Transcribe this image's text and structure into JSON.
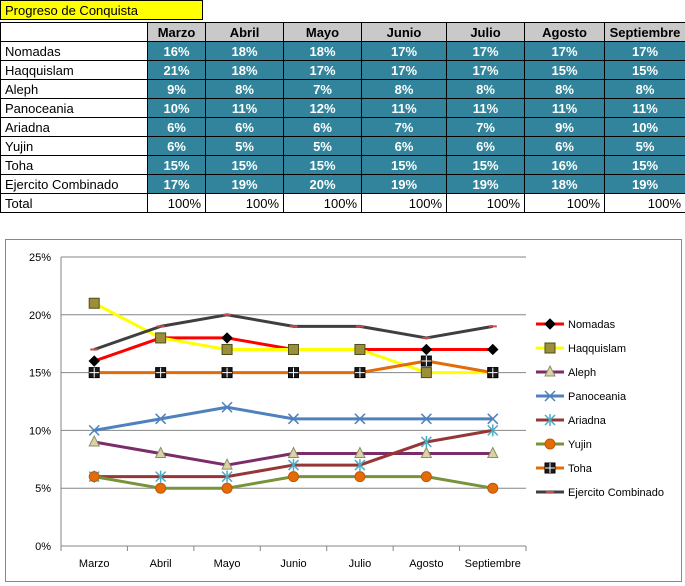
{
  "table": {
    "title": "Progreso de Conquista",
    "months": [
      "Marzo",
      "Abril",
      "Mayo",
      "Junio",
      "Julio",
      "Agosto",
      "Septiembre"
    ],
    "rows": [
      {
        "name": "Nomadas",
        "values": [
          "16%",
          "18%",
          "18%",
          "17%",
          "17%",
          "17%",
          "17%"
        ]
      },
      {
        "name": "Haqquislam",
        "values": [
          "21%",
          "18%",
          "17%",
          "17%",
          "17%",
          "15%",
          "15%"
        ]
      },
      {
        "name": "Aleph",
        "values": [
          "9%",
          "8%",
          "7%",
          "8%",
          "8%",
          "8%",
          "8%"
        ]
      },
      {
        "name": "Panoceania",
        "values": [
          "10%",
          "11%",
          "12%",
          "11%",
          "11%",
          "11%",
          "11%"
        ]
      },
      {
        "name": "Ariadna",
        "values": [
          "6%",
          "6%",
          "6%",
          "7%",
          "7%",
          "9%",
          "10%"
        ]
      },
      {
        "name": "Yujin",
        "values": [
          "6%",
          "5%",
          "5%",
          "6%",
          "6%",
          "6%",
          "5%"
        ]
      },
      {
        "name": "Toha",
        "values": [
          "15%",
          "15%",
          "15%",
          "15%",
          "15%",
          "16%",
          "15%"
        ]
      },
      {
        "name": "Ejercito Combinado",
        "values": [
          "17%",
          "19%",
          "20%",
          "19%",
          "19%",
          "18%",
          "19%"
        ]
      }
    ],
    "total_label": "Total",
    "totals": [
      "100%",
      "100%",
      "100%",
      "100%",
      "100%",
      "100%",
      "100%"
    ]
  },
  "chart_data": {
    "type": "line",
    "title": "",
    "xlabel": "",
    "ylabel": "",
    "categories": [
      "Marzo",
      "Abril",
      "Mayo",
      "Junio",
      "Julio",
      "Agosto",
      "Septiembre"
    ],
    "ylim": [
      0,
      25
    ],
    "yticks": [
      0,
      5,
      10,
      15,
      20,
      25
    ],
    "ytick_labels": [
      "0%",
      "5%",
      "10%",
      "15%",
      "20%",
      "25%"
    ],
    "grid": true,
    "legend_position": "right",
    "series": [
      {
        "name": "Nomadas",
        "values": [
          16,
          18,
          18,
          17,
          17,
          17,
          17
        ],
        "color": "#ff0000",
        "marker": "diamond"
      },
      {
        "name": "Haqquislam",
        "values": [
          21,
          18,
          17,
          17,
          17,
          15,
          15
        ],
        "color": "#ffff00",
        "marker": "square"
      },
      {
        "name": "Aleph",
        "values": [
          9,
          8,
          7,
          8,
          8,
          8,
          8
        ],
        "color": "#7b2c6a",
        "marker": "triangle"
      },
      {
        "name": "Panoceania",
        "values": [
          10,
          11,
          12,
          11,
          11,
          11,
          11
        ],
        "color": "#4f81bd",
        "marker": "x"
      },
      {
        "name": "Ariadna",
        "values": [
          6,
          6,
          6,
          7,
          7,
          9,
          10
        ],
        "color": "#953735",
        "marker": "star"
      },
      {
        "name": "Yujin",
        "values": [
          6,
          5,
          5,
          6,
          6,
          6,
          5
        ],
        "color": "#77933c",
        "marker": "circle"
      },
      {
        "name": "Toha",
        "values": [
          15,
          15,
          15,
          15,
          15,
          16,
          15
        ],
        "color": "#e36c09",
        "marker": "plus-square"
      },
      {
        "name": "Ejercito Combinado",
        "values": [
          17,
          19,
          20,
          19,
          19,
          18,
          19
        ],
        "color": "#3f3f3f",
        "marker": "dash"
      }
    ]
  }
}
